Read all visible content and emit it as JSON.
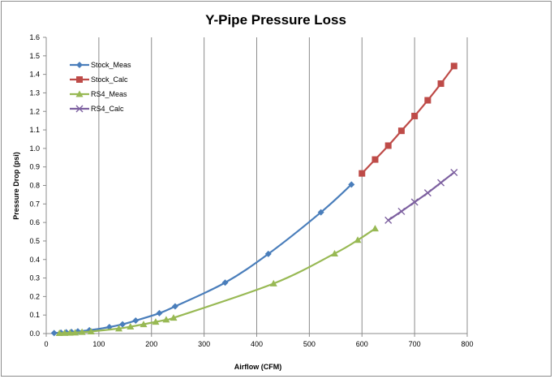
{
  "chart_data": {
    "type": "scatter",
    "title": "Y-Pipe Pressure Loss",
    "xlabel": "Airflow (CFM)",
    "ylabel": "Pressure Drop (psi)",
    "xlim": [
      0,
      800
    ],
    "ylim": [
      0,
      1.6
    ],
    "x_ticks": [
      "0",
      "100",
      "200",
      "300",
      "400",
      "500",
      "600",
      "700",
      "800"
    ],
    "y_ticks": [
      "0.0",
      "0.1",
      "0.2",
      "0.3",
      "0.4",
      "0.5",
      "0.6",
      "0.7",
      "0.8",
      "0.9",
      "1.0",
      "1.1",
      "1.2",
      "1.3",
      "1.4",
      "1.5",
      "1.6"
    ],
    "grid": "vertical",
    "legend_position": "top-left",
    "series": [
      {
        "name": "Stock_Meas",
        "color": "#4a7ebb",
        "marker": "diamond",
        "points": [
          [
            15,
            0.003
          ],
          [
            28,
            0.005
          ],
          [
            38,
            0.007
          ],
          [
            48,
            0.009
          ],
          [
            60,
            0.012
          ],
          [
            82,
            0.018
          ],
          [
            120,
            0.035
          ],
          [
            145,
            0.05
          ],
          [
            170,
            0.07
          ],
          [
            215,
            0.11
          ],
          [
            245,
            0.147
          ],
          [
            340,
            0.275
          ],
          [
            422,
            0.43
          ],
          [
            522,
            0.655
          ],
          [
            580,
            0.805
          ]
        ]
      },
      {
        "name": "Stock_Calc",
        "color": "#be4b48",
        "marker": "square",
        "points": [
          [
            600,
            0.865
          ],
          [
            625,
            0.94
          ],
          [
            650,
            1.015
          ],
          [
            675,
            1.095
          ],
          [
            700,
            1.175
          ],
          [
            725,
            1.26
          ],
          [
            750,
            1.35
          ],
          [
            775,
            1.445
          ]
        ]
      },
      {
        "name": "RS4_Meas",
        "color": "#98b954",
        "marker": "triangle",
        "points": [
          [
            25,
            0.002
          ],
          [
            35,
            0.003
          ],
          [
            45,
            0.004
          ],
          [
            55,
            0.005
          ],
          [
            68,
            0.008
          ],
          [
            85,
            0.011
          ],
          [
            138,
            0.027
          ],
          [
            160,
            0.037
          ],
          [
            185,
            0.05
          ],
          [
            208,
            0.063
          ],
          [
            228,
            0.075
          ],
          [
            242,
            0.085
          ],
          [
            432,
            0.27
          ],
          [
            548,
            0.432
          ],
          [
            592,
            0.505
          ],
          [
            625,
            0.567
          ]
        ]
      },
      {
        "name": "RS4_Calc",
        "color": "#7d60a0",
        "marker": "x",
        "points": [
          [
            650,
            0.612
          ],
          [
            675,
            0.66
          ],
          [
            700,
            0.71
          ],
          [
            725,
            0.76
          ],
          [
            750,
            0.815
          ],
          [
            775,
            0.87
          ]
        ]
      }
    ]
  }
}
